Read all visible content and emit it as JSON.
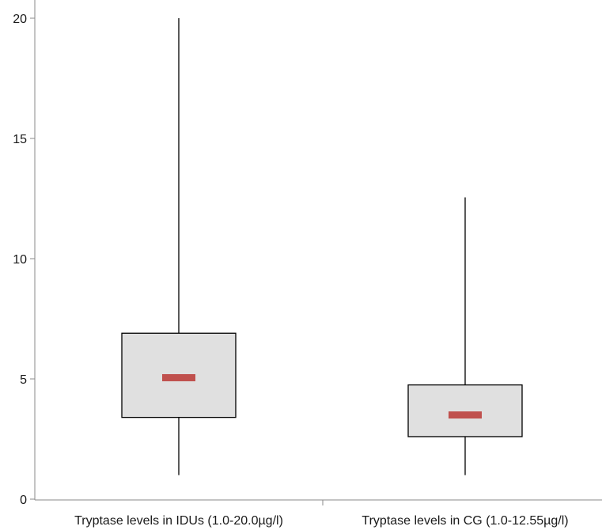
{
  "chart_data": {
    "type": "boxplot",
    "title": "",
    "xlabel": "",
    "ylabel": "",
    "ylim": [
      0,
      20
    ],
    "yticks": [
      0,
      5,
      10,
      15,
      20
    ],
    "grid": false,
    "box_color": "#e0e0e0",
    "median_color": "#c0504d",
    "categories": [
      "Tryptase levels in IDUs (1.0-20.0µg/l)",
      "Tryptase levels in CG (1.0-12.55µg/l)"
    ],
    "boxes": [
      {
        "min": 1.0,
        "q1": 3.4,
        "median": 5.05,
        "q3": 6.9,
        "max": 20.0
      },
      {
        "min": 1.0,
        "q1": 2.6,
        "median": 3.5,
        "q3": 4.75,
        "max": 12.55
      }
    ]
  }
}
